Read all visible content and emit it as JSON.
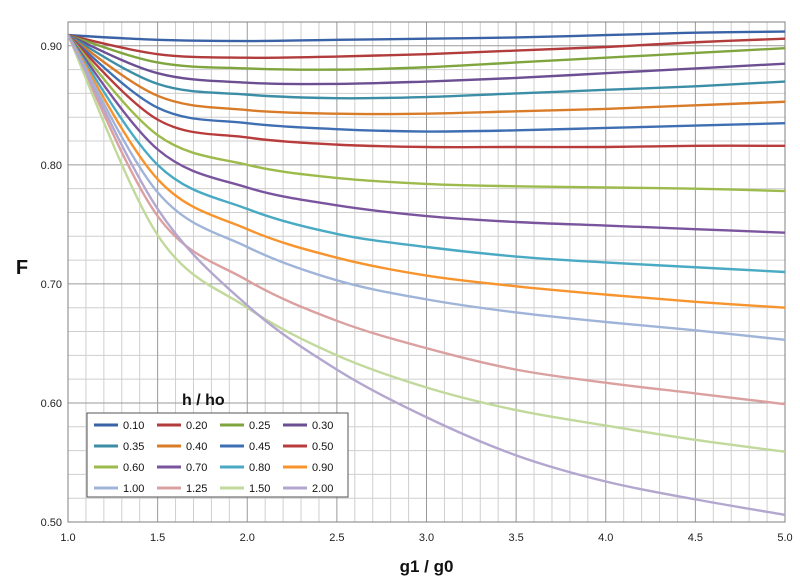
{
  "chart_data": {
    "type": "line",
    "title": "",
    "xlabel": "g1 / g0",
    "ylabel": "F",
    "xlim": [
      1.0,
      5.0
    ],
    "ylim": [
      0.5,
      0.92
    ],
    "x_ticks": [
      "1.0",
      "1.5",
      "2.0",
      "2.5",
      "3.0",
      "3.5",
      "4.0",
      "4.5",
      "5.0"
    ],
    "y_ticks": [
      "0.50",
      "0.60",
      "0.70",
      "0.80",
      "0.90"
    ],
    "grid": true,
    "legend": {
      "title": "h / ho",
      "placement": "bottom-left",
      "columns": 4
    },
    "x": [
      1.0,
      1.5,
      2.0,
      2.5,
      3.0,
      3.5,
      4.0,
      4.5,
      5.0
    ],
    "series": [
      {
        "name": "0.10",
        "color": "#3a62a6",
        "values": [
          0.909,
          0.905,
          0.904,
          0.905,
          0.906,
          0.907,
          0.909,
          0.911,
          0.912
        ]
      },
      {
        "name": "0.20",
        "color": "#b23b3b",
        "values": [
          0.909,
          0.893,
          0.89,
          0.891,
          0.893,
          0.896,
          0.899,
          0.903,
          0.906
        ]
      },
      {
        "name": "0.25",
        "color": "#7fa53e",
        "values": [
          0.909,
          0.886,
          0.881,
          0.88,
          0.882,
          0.886,
          0.89,
          0.894,
          0.898
        ]
      },
      {
        "name": "0.30",
        "color": "#6b4f92",
        "values": [
          0.909,
          0.877,
          0.869,
          0.868,
          0.87,
          0.873,
          0.877,
          0.881,
          0.885
        ]
      },
      {
        "name": "0.35",
        "color": "#3c8ea6",
        "values": [
          0.909,
          0.868,
          0.859,
          0.856,
          0.857,
          0.86,
          0.863,
          0.866,
          0.87
        ]
      },
      {
        "name": "0.40",
        "color": "#d97c2a",
        "values": [
          0.909,
          0.858,
          0.846,
          0.843,
          0.843,
          0.845,
          0.847,
          0.85,
          0.853
        ]
      },
      {
        "name": "0.45",
        "color": "#3f6fb2",
        "values": [
          0.909,
          0.848,
          0.835,
          0.83,
          0.828,
          0.829,
          0.831,
          0.833,
          0.835
        ]
      },
      {
        "name": "0.50",
        "color": "#b83c3c",
        "values": [
          0.909,
          0.838,
          0.823,
          0.817,
          0.815,
          0.815,
          0.815,
          0.816,
          0.816
        ]
      },
      {
        "name": "0.60",
        "color": "#9cbb4c",
        "values": [
          0.909,
          0.825,
          0.8,
          0.789,
          0.784,
          0.782,
          0.781,
          0.78,
          0.778
        ]
      },
      {
        "name": "0.70",
        "color": "#7a559e",
        "values": [
          0.909,
          0.813,
          0.781,
          0.766,
          0.757,
          0.752,
          0.749,
          0.746,
          0.743
        ]
      },
      {
        "name": "0.80",
        "color": "#4aaac4",
        "values": [
          0.909,
          0.8,
          0.763,
          0.742,
          0.731,
          0.723,
          0.718,
          0.714,
          0.71
        ]
      },
      {
        "name": "0.90",
        "color": "#f7942d",
        "values": [
          0.909,
          0.788,
          0.746,
          0.722,
          0.707,
          0.698,
          0.691,
          0.685,
          0.68
        ]
      },
      {
        "name": "1.00",
        "color": "#9fb4d8",
        "values": [
          0.909,
          0.777,
          0.731,
          0.703,
          0.687,
          0.676,
          0.668,
          0.661,
          0.653
        ]
      },
      {
        "name": "1.25",
        "color": "#dba0a0",
        "values": [
          0.909,
          0.757,
          0.703,
          0.669,
          0.646,
          0.628,
          0.617,
          0.608,
          0.599
        ]
      },
      {
        "name": "1.50",
        "color": "#c2d99c",
        "values": [
          0.909,
          0.741,
          0.68,
          0.64,
          0.613,
          0.594,
          0.581,
          0.569,
          0.559
        ]
      },
      {
        "name": "2.00",
        "color": "#b3a7cf",
        "values": [
          0.909,
          0.763,
          0.682,
          0.628,
          0.588,
          0.556,
          0.534,
          0.519,
          0.506
        ]
      }
    ]
  }
}
